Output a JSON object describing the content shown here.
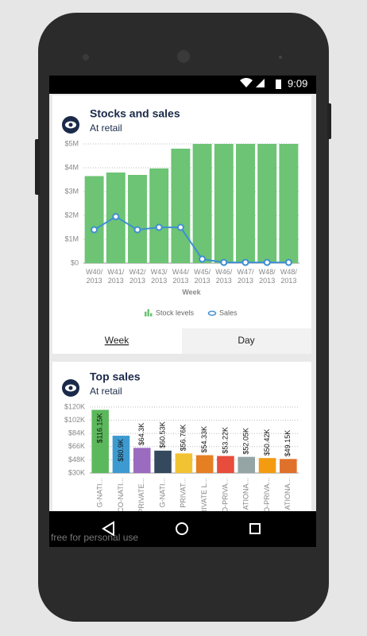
{
  "status_bar": {
    "time": "9:09"
  },
  "chart_data": [
    {
      "type": "combo",
      "title": "Stocks and sales",
      "subtitle": "At retail",
      "x_label": "Week",
      "categories": [
        "W40/\n2013",
        "W41/\n2013",
        "W42/\n2013",
        "W43/\n2013",
        "W44/\n2013",
        "W45/\n2013",
        "W46/\n2013",
        "W47/\n2013",
        "W48/\n2013",
        "W48/\n2013"
      ],
      "series": [
        {
          "name": "Stock levels",
          "type": "bar",
          "color": "#6cc474",
          "values": [
            3.65,
            3.8,
            3.7,
            3.97,
            4.8,
            5.0,
            5.0,
            5.0,
            5.0,
            5.0
          ]
        },
        {
          "name": "Sales",
          "type": "line",
          "color": "#3f8fd2",
          "values": [
            1.4,
            1.95,
            1.4,
            1.5,
            1.5,
            0.17,
            0.03,
            0.03,
            0.03,
            0.03
          ]
        }
      ],
      "ylim": [
        0,
        5
      ],
      "yticks": [
        {
          "value": 0,
          "label": "$0"
        },
        {
          "value": 1,
          "label": "$1M"
        },
        {
          "value": 2,
          "label": "$2M"
        },
        {
          "value": 3,
          "label": "$3M"
        },
        {
          "value": 4,
          "label": "$4M"
        },
        {
          "value": 5,
          "label": "$5M"
        }
      ],
      "grid": true
    },
    {
      "type": "bar",
      "title": "Top sales",
      "subtitle": "At retail",
      "categories": [
        "G-NATI...",
        "CO-NATI...",
        "PRIVATE...",
        "G-NATI...",
        "PRIVAT...",
        "PRIVATE L...",
        "O-PRIVA...",
        "ATIONA...",
        "O-PRIVA...",
        "ATIONA..."
      ],
      "values": [
        116.15,
        80.9,
        64.3,
        60.53,
        56.76,
        54.33,
        53.22,
        52.05,
        50.42,
        49.15
      ],
      "value_labels": [
        "$116.15K",
        "$80.9K",
        "$64.3K",
        "$60.53K",
        "$56.76K",
        "$54.33K",
        "$53.22K",
        "$52.05K",
        "$50.42K",
        "$49.15K"
      ],
      "colors": [
        "#5cb85c",
        "#3d9ad1",
        "#9b6bbf",
        "#34495e",
        "#f1c232",
        "#e67e22",
        "#e74c3c",
        "#95a5a6",
        "#f39c12",
        "#e0712b"
      ],
      "ylim": [
        30,
        120
      ],
      "yticks": [
        {
          "value": 30,
          "label": "$30K"
        },
        {
          "value": 48,
          "label": "$48K"
        },
        {
          "value": 66,
          "label": "$66K"
        },
        {
          "value": 84,
          "label": "$84K"
        },
        {
          "value": 102,
          "label": "$102K"
        },
        {
          "value": 120,
          "label": "$120K"
        }
      ],
      "grid": true
    }
  ],
  "tabs": [
    "Week",
    "Day"
  ],
  "watermark": "free for personal use"
}
